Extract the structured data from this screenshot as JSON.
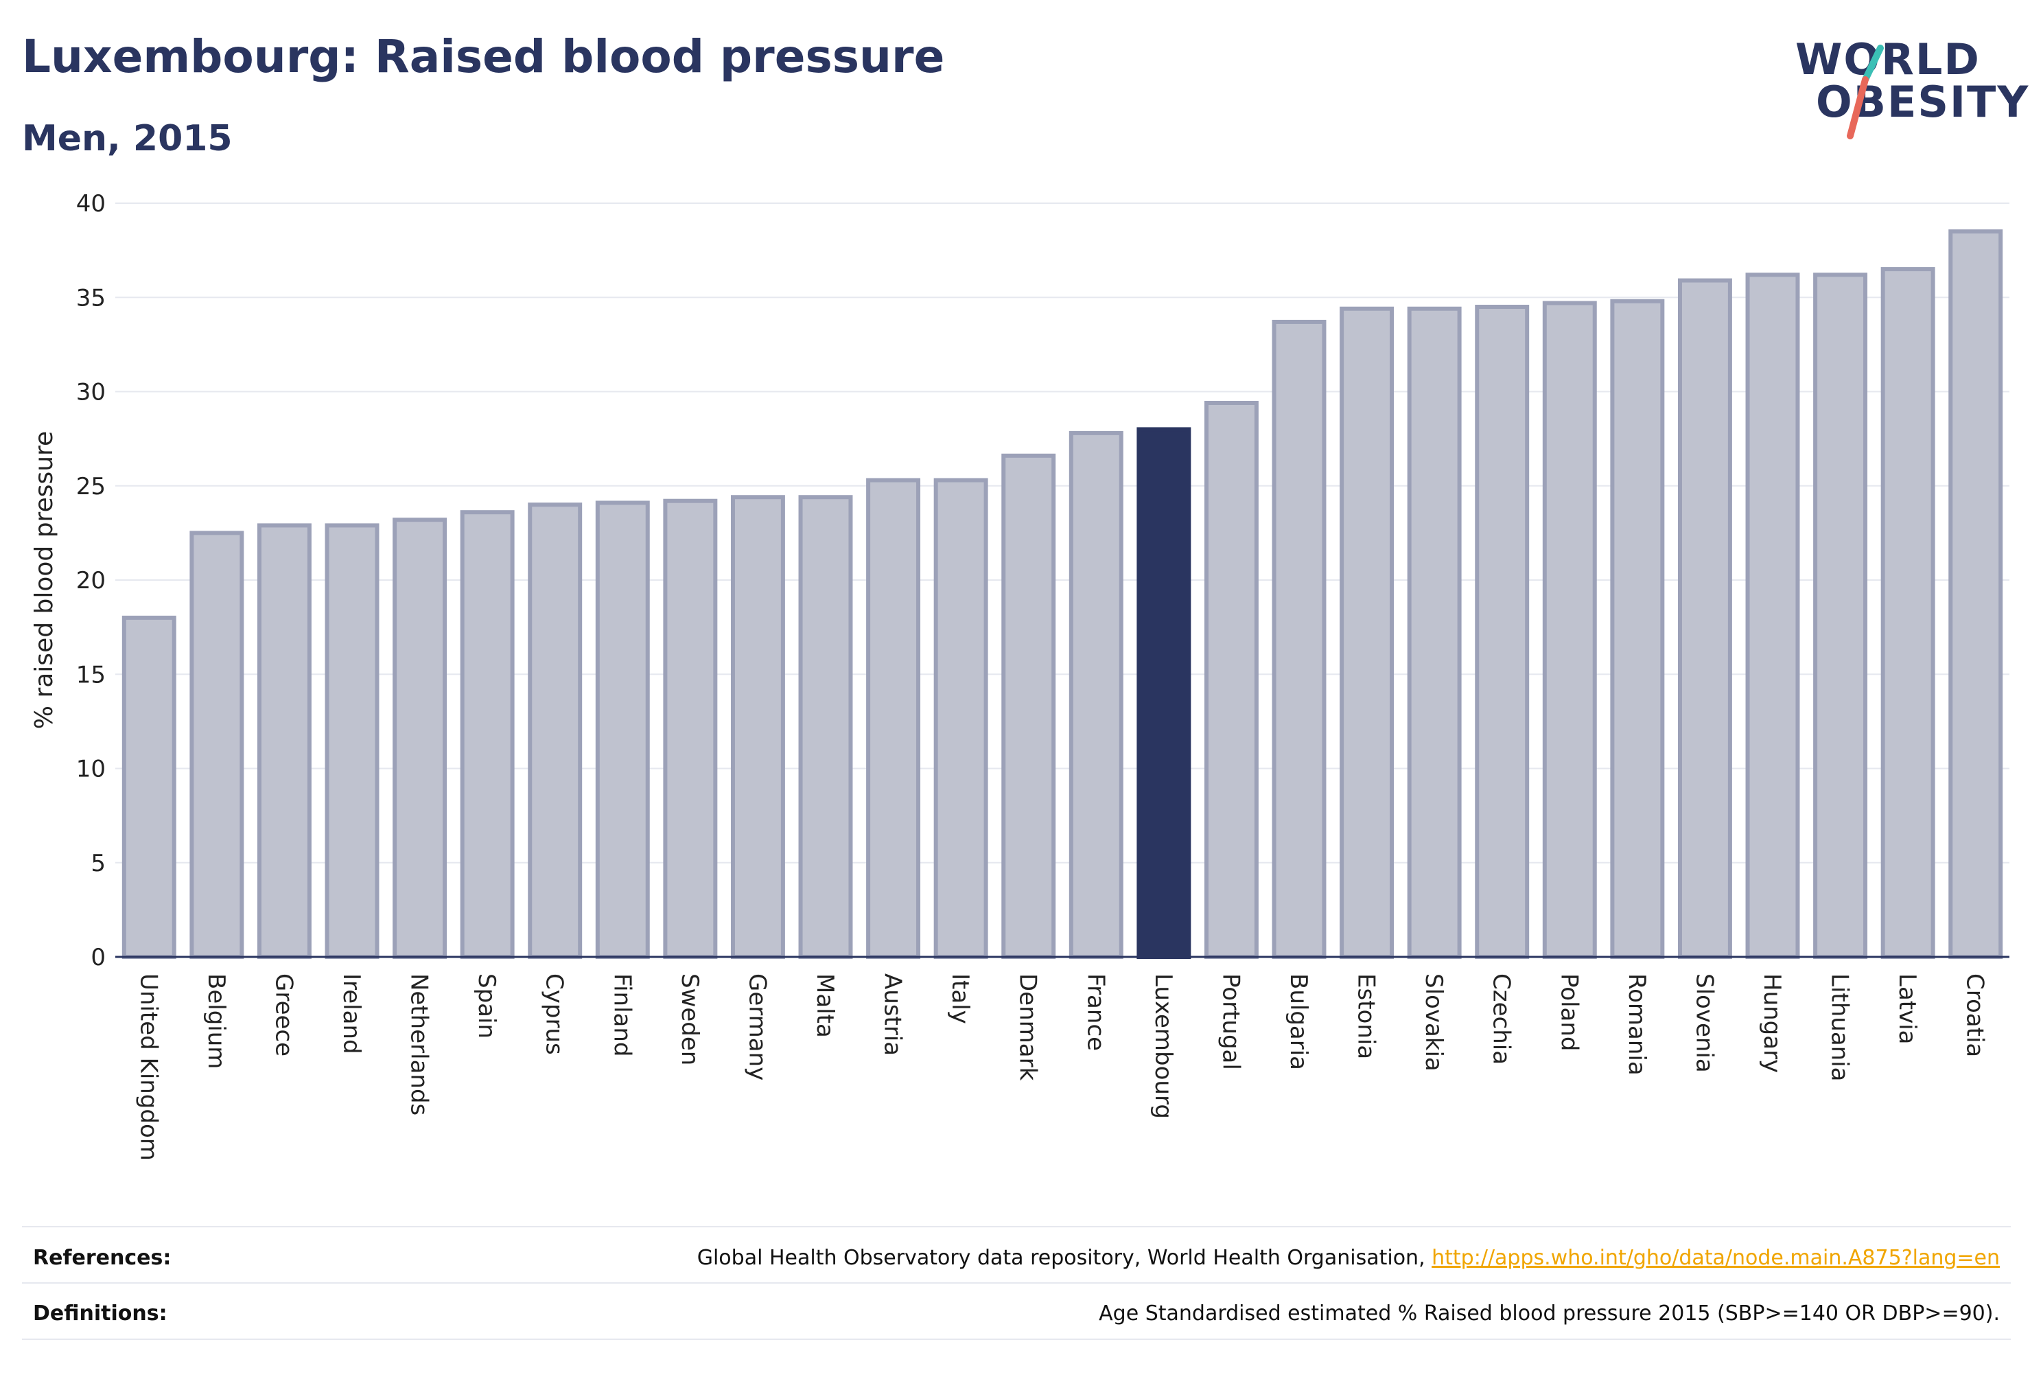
{
  "header": {
    "title": "Luxembourg: Raised blood pressure",
    "subtitle": "Men, 2015"
  },
  "logo": {
    "line1": "WORLD",
    "line2": "OBESITY",
    "colors": {
      "text": "#2a3560",
      "slash_top": "#3bbfb5",
      "slash_bottom": "#e8685a"
    }
  },
  "chart_data": {
    "type": "bar",
    "ylabel": "% raised blood pressure",
    "xlabel": "",
    "ylim": [
      0,
      40
    ],
    "yticks": [
      0,
      5,
      10,
      15,
      20,
      25,
      30,
      35,
      40
    ],
    "grid": true,
    "highlight": "Luxembourg",
    "colors": {
      "bar": "#bfc2cf",
      "bar_border": "#9ca1b8",
      "highlight": "#2a3560",
      "grid": "#e6e8ef",
      "axis": "#2a3560"
    },
    "categories": [
      "United Kingdom",
      "Belgium",
      "Greece",
      "Ireland",
      "Netherlands",
      "Spain",
      "Cyprus",
      "Finland",
      "Sweden",
      "Germany",
      "Malta",
      "Austria",
      "Italy",
      "Denmark",
      "France",
      "Luxembourg",
      "Portugal",
      "Bulgaria",
      "Estonia",
      "Slovakia",
      "Czechia",
      "Poland",
      "Romania",
      "Slovenia",
      "Hungary",
      "Lithuania",
      "Latvia",
      "Croatia"
    ],
    "values": [
      18.0,
      22.5,
      22.9,
      22.9,
      23.2,
      23.6,
      24.0,
      24.1,
      24.2,
      24.4,
      24.4,
      25.3,
      25.3,
      26.6,
      27.8,
      28.0,
      29.4,
      33.7,
      34.4,
      34.4,
      34.5,
      34.7,
      34.8,
      35.9,
      36.2,
      36.2,
      36.5,
      38.5
    ]
  },
  "footer": {
    "references_label": "References:",
    "references_text": "Global Health Observatory data repository, World Health Organisation, ",
    "references_link": "http://apps.who.int/gho/data/node.main.A875?lang=en",
    "definitions_label": "Definitions:",
    "definitions_text": "Age Standardised estimated % Raised blood pressure 2015 (SBP>=140 OR DBP>=90)."
  }
}
